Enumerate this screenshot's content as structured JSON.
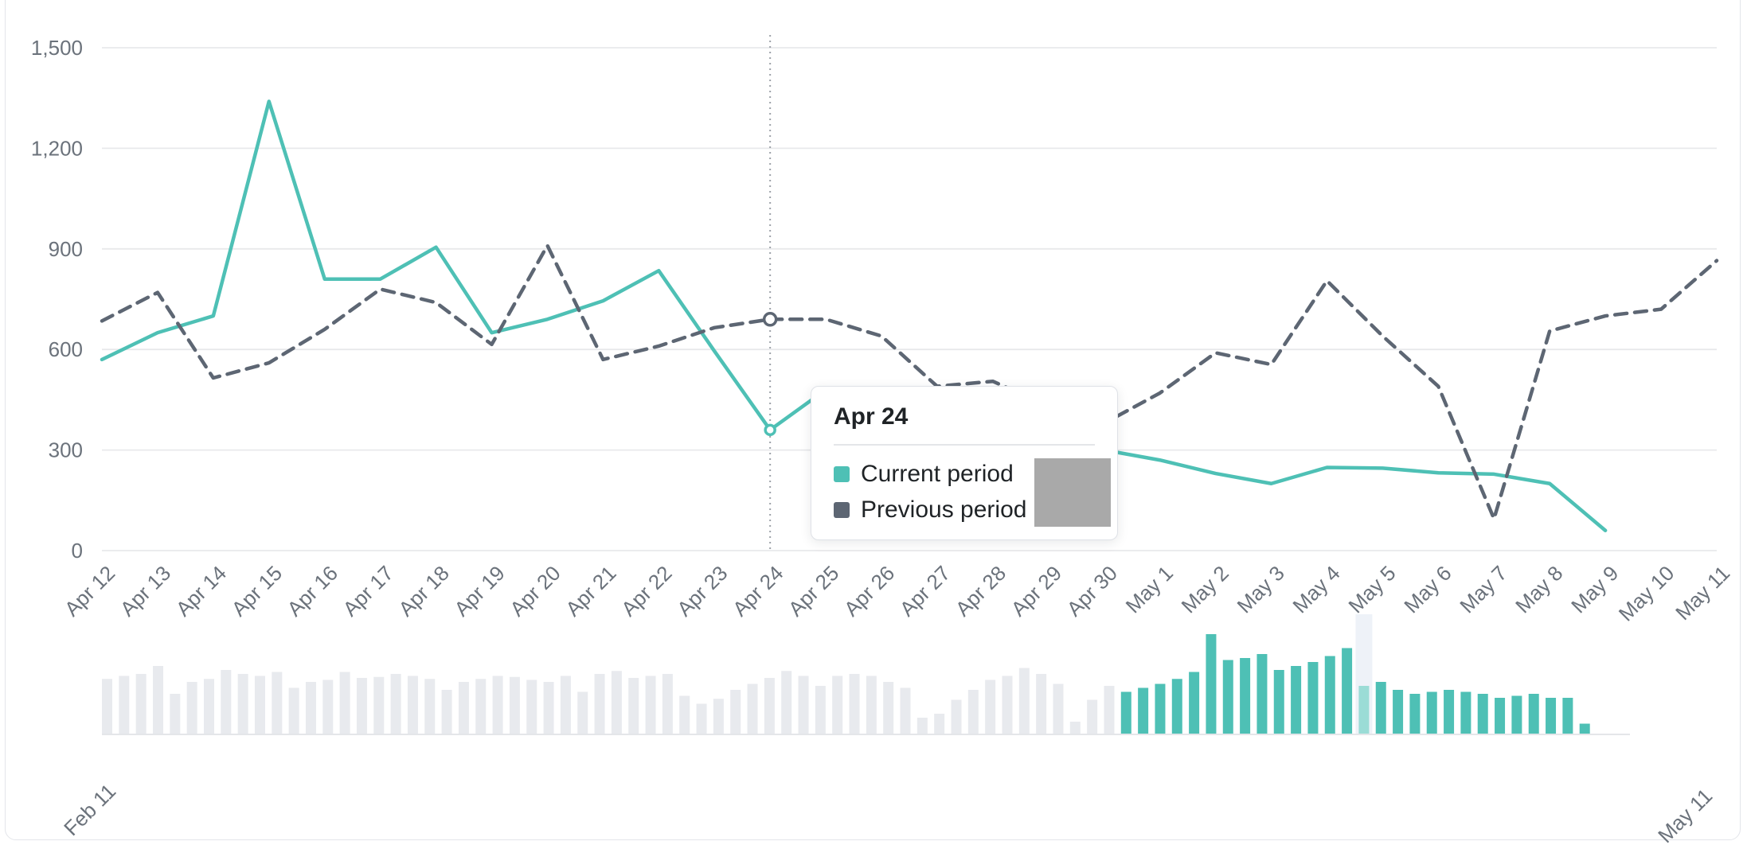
{
  "colors": {
    "current_series": "#4ec0b5",
    "previous_series": "#5d6673",
    "current_highlight_bar": "#9bdcd6",
    "highlight_band": "#eef2f8",
    "past_bar": "#e8eaee",
    "gridline": "#e8e9eb",
    "axis_label": "#6b727b",
    "hover_line": "#9ca1a8",
    "redaction_box": "#a9a9a9"
  },
  "tooltip": {
    "title": "Apr 24",
    "rows": [
      {
        "label": "Current period",
        "value": "$",
        "color": "#4ec0b5"
      },
      {
        "label": "Previous period",
        "value": "$",
        "color": "#5d6673"
      }
    ]
  },
  "chart_data": [
    {
      "type": "line",
      "title": "",
      "xlabel": "",
      "ylabel": "",
      "ylim": [
        0,
        1500
      ],
      "grid": true,
      "yticks": [
        0,
        300,
        600,
        900,
        1200,
        1500
      ],
      "ytick_labels": [
        "0",
        "300",
        "600",
        "900",
        "1,200",
        "1,500"
      ],
      "categories": [
        "Apr 12",
        "Apr 13",
        "Apr 14",
        "Apr 15",
        "Apr 16",
        "Apr 17",
        "Apr 18",
        "Apr 19",
        "Apr 20",
        "Apr 21",
        "Apr 22",
        "Apr 23",
        "Apr 24",
        "Apr 25",
        "Apr 26",
        "Apr 27",
        "Apr 28",
        "Apr 29",
        "Apr 30",
        "May 1",
        "May 2",
        "May 3",
        "May 4",
        "May 5",
        "May 6",
        "May 7",
        "May 8",
        "May 9",
        "May 10",
        "May 11"
      ],
      "hover_category": "Apr 24",
      "hover_index": 12,
      "series": [
        {
          "name": "Current period",
          "style": "solid",
          "color": "#4ec0b5",
          "values": [
            570,
            650,
            700,
            1340,
            810,
            810,
            905,
            650,
            690,
            745,
            835,
            595,
            360,
            480,
            450,
            405,
            355,
            315,
            300,
            270,
            230,
            200,
            248,
            246,
            232,
            228,
            200,
            60,
            null,
            null
          ]
        },
        {
          "name": "Previous period",
          "style": "dashed",
          "color": "#5d6673",
          "values": [
            685,
            770,
            515,
            560,
            660,
            780,
            740,
            615,
            910,
            570,
            610,
            665,
            690,
            690,
            640,
            490,
            505,
            430,
            380,
            470,
            590,
            555,
            805,
            640,
            490,
            95,
            655,
            700,
            720,
            865
          ]
        }
      ]
    },
    {
      "type": "bar",
      "title": "range selector",
      "start_label": "Feb 11",
      "end_label": "May 11",
      "current_start_index": 60,
      "current_end_index": 87,
      "highlight_index": 74,
      "values": [
        0.55,
        0.58,
        0.6,
        0.68,
        0.4,
        0.52,
        0.55,
        0.64,
        0.6,
        0.58,
        0.62,
        0.46,
        0.52,
        0.54,
        0.62,
        0.56,
        0.57,
        0.6,
        0.58,
        0.55,
        0.44,
        0.52,
        0.55,
        0.58,
        0.57,
        0.54,
        0.52,
        0.58,
        0.42,
        0.6,
        0.63,
        0.56,
        0.58,
        0.6,
        0.38,
        0.3,
        0.35,
        0.44,
        0.5,
        0.56,
        0.63,
        0.58,
        0.48,
        0.58,
        0.6,
        0.58,
        0.52,
        0.46,
        0.16,
        0.2,
        0.34,
        0.44,
        0.54,
        0.58,
        0.66,
        0.6,
        0.5,
        0.12,
        0.34,
        0.48,
        0.42,
        0.46,
        0.5,
        0.55,
        0.62,
        1.0,
        0.74,
        0.76,
        0.8,
        0.64,
        0.68,
        0.72,
        0.78,
        0.86,
        0.48,
        0.52,
        0.44,
        0.4,
        0.42,
        0.44,
        0.42,
        0.4,
        0.36,
        0.38,
        0.4,
        0.36,
        0.36,
        0.1,
        0,
        0
      ]
    }
  ]
}
